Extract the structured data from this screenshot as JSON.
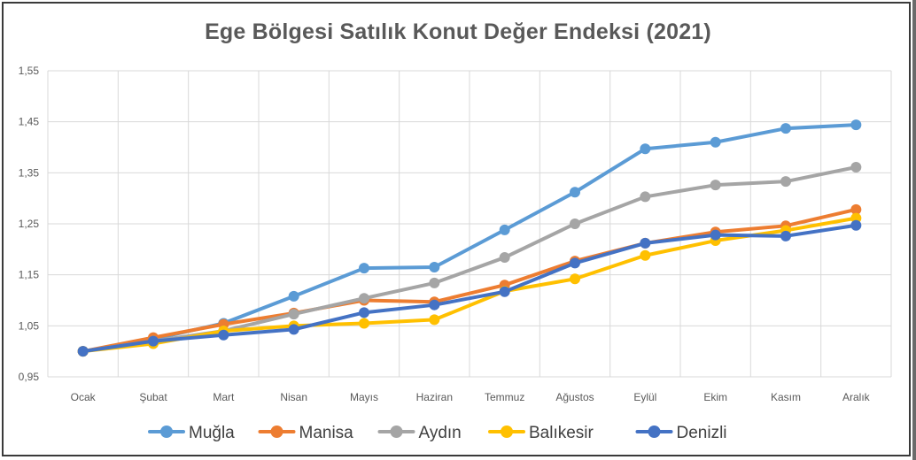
{
  "chart_data": {
    "type": "line",
    "title": "Ege Bölgesi Satılık Konut Değer Endeksi (2021)",
    "categories": [
      "Ocak",
      "Şubat",
      "Mart",
      "Nisan",
      "Mayıs",
      "Haziran",
      "Temmuz",
      "Ağustos",
      "Eylül",
      "Ekim",
      "Kasım",
      "Aralık"
    ],
    "ylim": [
      0.95,
      1.55
    ],
    "yticks": [
      "0,95",
      "1,05",
      "1,15",
      "1,25",
      "1,35",
      "1,45",
      "1,55"
    ],
    "grid": true,
    "legend_position": "bottom",
    "series": [
      {
        "name": "Muğla",
        "color": "#5B9BD5",
        "values": [
          1.0,
          1.024,
          1.055,
          1.108,
          1.163,
          1.165,
          1.238,
          1.312,
          1.397,
          1.41,
          1.437,
          1.444
        ]
      },
      {
        "name": "Manisa",
        "color": "#ED7D31",
        "values": [
          1.0,
          1.027,
          1.053,
          1.075,
          1.1,
          1.097,
          1.13,
          1.177,
          1.212,
          1.234,
          1.246,
          1.278
        ]
      },
      {
        "name": "Aydın",
        "color": "#A5A5A5",
        "values": [
          1.0,
          1.02,
          1.04,
          1.073,
          1.104,
          1.134,
          1.184,
          1.25,
          1.303,
          1.326,
          1.333,
          1.361
        ]
      },
      {
        "name": "Balıkesir",
        "color": "#FFC000",
        "values": [
          1.0,
          1.015,
          1.04,
          1.05,
          1.055,
          1.062,
          1.118,
          1.142,
          1.188,
          1.217,
          1.237,
          1.261
        ]
      },
      {
        "name": "Denizli",
        "color": "#4472C4",
        "values": [
          1.0,
          1.02,
          1.032,
          1.043,
          1.076,
          1.091,
          1.117,
          1.173,
          1.212,
          1.228,
          1.226,
          1.247
        ]
      }
    ]
  }
}
